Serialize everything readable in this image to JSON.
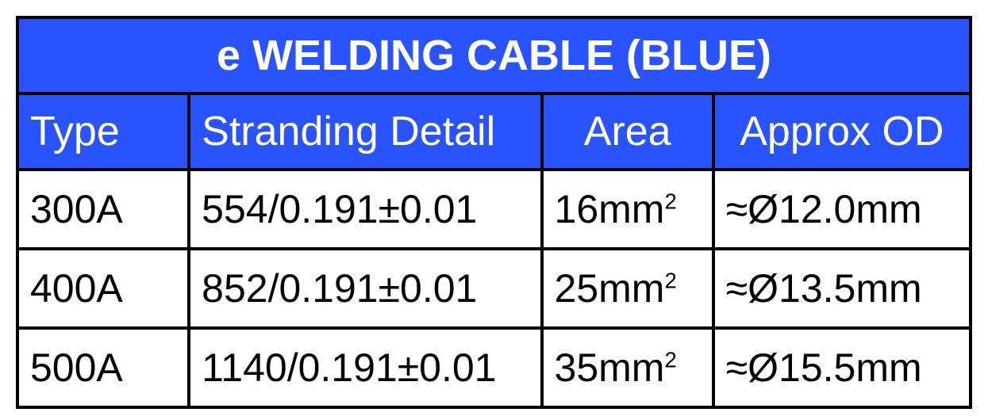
{
  "table": {
    "title": "e WELDING CABLE (BLUE)",
    "header_bg": "#2953ff",
    "header_fg": "#ffffff",
    "border_color": "#000000",
    "cell_bg": "#ffffff",
    "cell_fg": "#000000",
    "title_fontsize": 54,
    "header_fontsize": 52,
    "cell_fontsize": 50,
    "columns": [
      {
        "label": "Type",
        "align": "left",
        "width_pct": 18
      },
      {
        "label": "Stranding Detail",
        "align": "left",
        "width_pct": 37
      },
      {
        "label": "Area",
        "align": "center",
        "width_pct": 18
      },
      {
        "label": "Approx OD",
        "align": "center",
        "width_pct": 27
      }
    ],
    "rows": [
      {
        "type": "300A",
        "stranding": "554/0.191±0.01",
        "area_value": "16",
        "area_unit": "mm",
        "area_exp": "2",
        "od": "≈Ø12.0mm"
      },
      {
        "type": "400A",
        "stranding": "852/0.191±0.01",
        "area_value": "25",
        "area_unit": "mm",
        "area_exp": "2",
        "od": "≈Ø13.5mm"
      },
      {
        "type": "500A",
        "stranding": "1140/0.191±0.01",
        "area_value": "35",
        "area_unit": "mm",
        "area_exp": "2",
        "od": "≈Ø15.5mm"
      }
    ]
  }
}
